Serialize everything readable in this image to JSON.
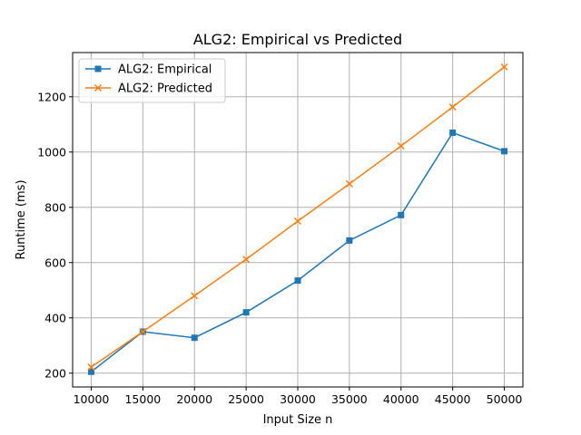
{
  "chart_data": {
    "type": "line",
    "title": "ALG2: Empirical vs Predicted",
    "xlabel": "Input Size n",
    "ylabel": "Runtime (ms)",
    "x": [
      10000,
      15000,
      20000,
      25000,
      30000,
      35000,
      40000,
      45000,
      50000
    ],
    "xticks": [
      "10000",
      "15000",
      "20000",
      "25000",
      "30000",
      "35000",
      "40000",
      "45000",
      "50000"
    ],
    "yticks": [
      "200",
      "400",
      "600",
      "800",
      "1000",
      "1200"
    ],
    "xlim": [
      8200,
      51800
    ],
    "ylim": [
      150,
      1360
    ],
    "grid": true,
    "legend_position": "upper-left",
    "series": [
      {
        "name": "ALG2: Empirical",
        "marker": "square",
        "color": "#1f77b4",
        "values": [
          205,
          350,
          328,
          420,
          535,
          680,
          772,
          1070,
          1003
        ]
      },
      {
        "name": "ALG2: Predicted",
        "marker": "x",
        "color": "#ff7f0e",
        "values": [
          222,
          350,
          480,
          612,
          750,
          885,
          1022,
          1163,
          1308
        ]
      }
    ]
  }
}
